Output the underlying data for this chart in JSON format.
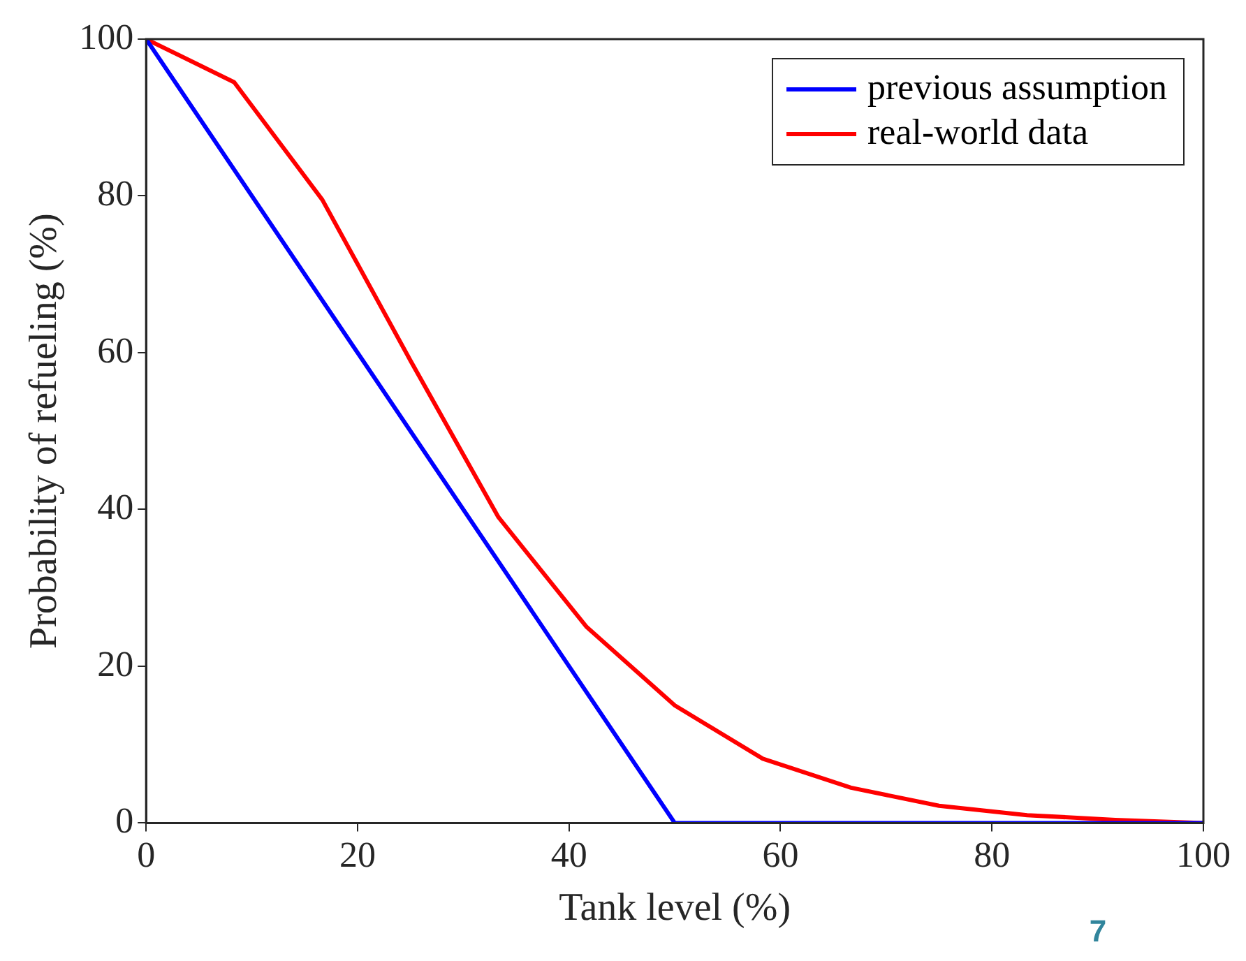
{
  "chart_data": {
    "type": "line",
    "xlabel": "Tank level (%)",
    "ylabel": "Probability of refueling (%)",
    "xlim": [
      0,
      100
    ],
    "xticks": [
      0,
      20,
      40,
      60,
      80,
      100
    ],
    "ylim": [
      0,
      100
    ],
    "yticks": [
      0,
      20,
      40,
      60,
      80,
      100
    ],
    "grid": false,
    "legend": "top right",
    "marker": "none",
    "line_style": "solid",
    "series": [
      {
        "name": "previous assumption",
        "color": "#0000ff",
        "x": [
          0,
          50,
          100
        ],
        "values": [
          100,
          0,
          0
        ]
      },
      {
        "name": "real-world data",
        "color": "#ff0000",
        "x": [
          0,
          8.33,
          16.67,
          25,
          33.33,
          41.67,
          50,
          58.33,
          66.67,
          75,
          83.33,
          91.67,
          100
        ],
        "values": [
          100,
          94.5,
          79.5,
          59,
          39,
          25,
          15,
          8.2,
          4.5,
          2.2,
          1,
          0.4,
          0
        ]
      }
    ],
    "annotations": [
      "7"
    ]
  }
}
